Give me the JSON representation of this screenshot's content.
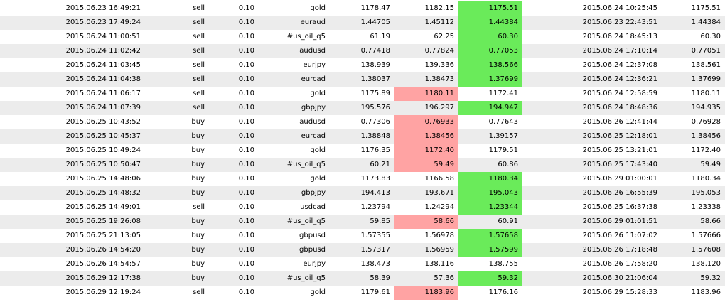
{
  "colors": {
    "row_alt": "#ececec",
    "row_base": "#ffffff",
    "take_profit_hit": "#6aeb5a",
    "stop_loss_hit": "#ffa3a3"
  },
  "trades": [
    {
      "open_time": "2015.06.23 16:49:21",
      "type": "sell",
      "size": "0.10",
      "symbol": "gold",
      "price": "1178.47",
      "sl": "1182.15",
      "tp": "1175.51",
      "close_time": "2015.06.24 10:25:45",
      "close_price": "1175.51",
      "hit": "tp"
    },
    {
      "open_time": "2015.06.23 17:49:24",
      "type": "sell",
      "size": "0.10",
      "symbol": "euraud",
      "price": "1.44705",
      "sl": "1.45112",
      "tp": "1.44384",
      "close_time": "2015.06.23 22:43:51",
      "close_price": "1.44384",
      "hit": "tp"
    },
    {
      "open_time": "2015.06.24 11:00:51",
      "type": "sell",
      "size": "0.10",
      "symbol": "#us_oil_q5",
      "price": "61.19",
      "sl": "62.25",
      "tp": "60.30",
      "close_time": "2015.06.24 18:45:13",
      "close_price": "60.30",
      "hit": "tp"
    },
    {
      "open_time": "2015.06.24 11:02:42",
      "type": "sell",
      "size": "0.10",
      "symbol": "audusd",
      "price": "0.77418",
      "sl": "0.77824",
      "tp": "0.77053",
      "close_time": "2015.06.24 17:10:14",
      "close_price": "0.77051",
      "hit": "tp"
    },
    {
      "open_time": "2015.06.24 11:03:45",
      "type": "sell",
      "size": "0.10",
      "symbol": "eurjpy",
      "price": "138.939",
      "sl": "139.336",
      "tp": "138.566",
      "close_time": "2015.06.24 12:37:08",
      "close_price": "138.561",
      "hit": "tp"
    },
    {
      "open_time": "2015.06.24 11:04:38",
      "type": "sell",
      "size": "0.10",
      "symbol": "eurcad",
      "price": "1.38037",
      "sl": "1.38473",
      "tp": "1.37699",
      "close_time": "2015.06.24 12:36:21",
      "close_price": "1.37699",
      "hit": "tp"
    },
    {
      "open_time": "2015.06.24 11:06:17",
      "type": "sell",
      "size": "0.10",
      "symbol": "gold",
      "price": "1175.89",
      "sl": "1180.11",
      "tp": "1172.41",
      "close_time": "2015.06.24 12:58:59",
      "close_price": "1180.11",
      "hit": "sl"
    },
    {
      "open_time": "2015.06.24 11:07:39",
      "type": "sell",
      "size": "0.10",
      "symbol": "gbpjpy",
      "price": "195.576",
      "sl": "196.297",
      "tp": "194.947",
      "close_time": "2015.06.24 18:48:36",
      "close_price": "194.935",
      "hit": "tp"
    },
    {
      "open_time": "2015.06.25 10:43:52",
      "type": "buy",
      "size": "0.10",
      "symbol": "audusd",
      "price": "0.77306",
      "sl": "0.76933",
      "tp": "0.77643",
      "close_time": "2015.06.26 12:41:44",
      "close_price": "0.76928",
      "hit": "sl"
    },
    {
      "open_time": "2015.06.25 10:45:37",
      "type": "buy",
      "size": "0.10",
      "symbol": "eurcad",
      "price": "1.38848",
      "sl": "1.38456",
      "tp": "1.39157",
      "close_time": "2015.06.25 12:18:01",
      "close_price": "1.38456",
      "hit": "sl"
    },
    {
      "open_time": "2015.06.25 10:49:24",
      "type": "buy",
      "size": "0.10",
      "symbol": "gold",
      "price": "1176.35",
      "sl": "1172.40",
      "tp": "1179.51",
      "close_time": "2015.06.25 13:21:01",
      "close_price": "1172.40",
      "hit": "sl"
    },
    {
      "open_time": "2015.06.25 10:50:47",
      "type": "buy",
      "size": "0.10",
      "symbol": "#us_oil_q5",
      "price": "60.21",
      "sl": "59.49",
      "tp": "60.86",
      "close_time": "2015.06.25 17:43:40",
      "close_price": "59.49",
      "hit": "sl"
    },
    {
      "open_time": "2015.06.25 14:48:06",
      "type": "buy",
      "size": "0.10",
      "symbol": "gold",
      "price": "1173.83",
      "sl": "1166.58",
      "tp": "1180.34",
      "close_time": "2015.06.29 01:00:01",
      "close_price": "1180.34",
      "hit": "tp"
    },
    {
      "open_time": "2015.06.25 14:48:32",
      "type": "buy",
      "size": "0.10",
      "symbol": "gbpjpy",
      "price": "194.413",
      "sl": "193.671",
      "tp": "195.043",
      "close_time": "2015.06.26 16:55:39",
      "close_price": "195.053",
      "hit": "tp"
    },
    {
      "open_time": "2015.06.25 14:49:01",
      "type": "sell",
      "size": "0.10",
      "symbol": "usdcad",
      "price": "1.23794",
      "sl": "1.24294",
      "tp": "1.23344",
      "close_time": "2015.06.25 16:37:38",
      "close_price": "1.23338",
      "hit": "tp"
    },
    {
      "open_time": "2015.06.25 19:26:08",
      "type": "buy",
      "size": "0.10",
      "symbol": "#us_oil_q5",
      "price": "59.85",
      "sl": "58.66",
      "tp": "60.91",
      "close_time": "2015.06.29 01:01:51",
      "close_price": "58.66",
      "hit": "sl"
    },
    {
      "open_time": "2015.06.25 21:13:05",
      "type": "buy",
      "size": "0.10",
      "symbol": "gbpusd",
      "price": "1.57355",
      "sl": "1.56978",
      "tp": "1.57658",
      "close_time": "2015.06.26 11:07:02",
      "close_price": "1.57666",
      "hit": "tp"
    },
    {
      "open_time": "2015.06.26 14:54:20",
      "type": "buy",
      "size": "0.10",
      "symbol": "gbpusd",
      "price": "1.57317",
      "sl": "1.56959",
      "tp": "1.57599",
      "close_time": "2015.06.26 17:18:48",
      "close_price": "1.57608",
      "hit": "tp"
    },
    {
      "open_time": "2015.06.26 14:54:57",
      "type": "buy",
      "size": "0.10",
      "symbol": "eurjpy",
      "price": "138.473",
      "sl": "138.116",
      "tp": "138.755",
      "close_time": "2015.06.26 17:58:20",
      "close_price": "138.120",
      "hit": ""
    },
    {
      "open_time": "2015.06.29 12:17:38",
      "type": "buy",
      "size": "0.10",
      "symbol": "#us_oil_q5",
      "price": "58.39",
      "sl": "57.36",
      "tp": "59.32",
      "close_time": "2015.06.30 21:06:04",
      "close_price": "59.32",
      "hit": "tp"
    },
    {
      "open_time": "2015.06.29 12:19:24",
      "type": "sell",
      "size": "0.10",
      "symbol": "gold",
      "price": "1179.61",
      "sl": "1183.96",
      "tp": "1176.16",
      "close_time": "2015.06.29 15:28:33",
      "close_price": "1183.96",
      "hit": "sl"
    }
  ]
}
